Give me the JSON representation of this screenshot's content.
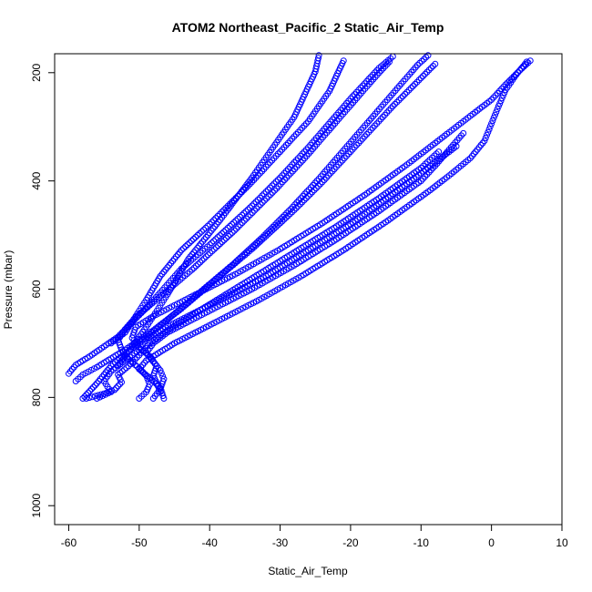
{
  "chart_data": {
    "type": "scatter",
    "title": "ATOM2 Northeast_Pacific_2 Static_Air_Temp",
    "xlabel": "Static_Air_Temp",
    "ylabel": "Pressure (mbar)",
    "xlim": [
      -62,
      10
    ],
    "ylim": [
      1035,
      165
    ],
    "y_inverted": true,
    "x_ticks": [
      -60,
      -50,
      -40,
      -30,
      -20,
      -10,
      0,
      10
    ],
    "y_ticks": [
      200,
      400,
      600,
      800,
      1000
    ],
    "grid": false,
    "legend": "none",
    "marker": "open-circle",
    "color": "#0000ff",
    "profiles": [
      [
        [
          -57.5,
          802
        ],
        [
          -55,
          793
        ],
        [
          -53.5,
          786
        ],
        [
          -52.5,
          772
        ],
        [
          -53,
          758
        ],
        [
          -51.5,
          742
        ],
        [
          -50,
          722
        ],
        [
          -48.5,
          700
        ],
        [
          -46,
          676
        ],
        [
          -43,
          652
        ],
        [
          -40,
          628
        ],
        [
          -37,
          604
        ],
        [
          -34,
          580
        ],
        [
          -31,
          556
        ],
        [
          -28,
          532
        ],
        [
          -25,
          508
        ],
        [
          -22,
          484
        ],
        [
          -19,
          458
        ],
        [
          -16,
          432
        ],
        [
          -13,
          404
        ],
        [
          -10,
          376
        ],
        [
          -7.5,
          346
        ]
      ],
      [
        [
          -56,
          802
        ],
        [
          -54,
          790
        ],
        [
          -55,
          770
        ],
        [
          -54,
          752
        ],
        [
          -52,
          732
        ],
        [
          -50,
          712
        ],
        [
          -49,
          692
        ],
        [
          -47,
          676
        ],
        [
          -44,
          656
        ],
        [
          -41,
          636
        ],
        [
          -38,
          616
        ],
        [
          -35,
          596
        ],
        [
          -32,
          576
        ],
        [
          -29,
          552
        ],
        [
          -26,
          528
        ],
        [
          -23,
          504
        ],
        [
          -20,
          480
        ],
        [
          -17,
          452
        ],
        [
          -14,
          424
        ],
        [
          -11,
          396
        ],
        [
          -8,
          366
        ],
        [
          -5,
          336
        ]
      ],
      [
        [
          -59,
          770
        ],
        [
          -58,
          758
        ],
        [
          -56,
          744
        ],
        [
          -54,
          728
        ],
        [
          -52,
          712
        ],
        [
          -50,
          694
        ],
        [
          -48,
          676
        ],
        [
          -46,
          656
        ],
        [
          -44,
          636
        ],
        [
          -42,
          614
        ],
        [
          -40,
          592
        ],
        [
          -38,
          570
        ],
        [
          -36,
          548
        ],
        [
          -34,
          526
        ],
        [
          -32,
          502
        ],
        [
          -30,
          478
        ],
        [
          -28,
          454
        ],
        [
          -26,
          428
        ],
        [
          -24,
          402
        ],
        [
          -22,
          374
        ],
        [
          -20,
          346
        ],
        [
          -18,
          318
        ],
        [
          -16,
          290
        ],
        [
          -14,
          262
        ],
        [
          -12,
          236
        ],
        [
          -10,
          210
        ],
        [
          -8,
          184
        ]
      ],
      [
        [
          -60,
          756
        ],
        [
          -59,
          740
        ],
        [
          -57,
          724
        ],
        [
          -55,
          706
        ],
        [
          -53,
          688
        ],
        [
          -51.5,
          668
        ],
        [
          -50,
          648
        ],
        [
          -48.5,
          628
        ],
        [
          -47,
          606
        ],
        [
          -45.5,
          584
        ],
        [
          -44,
          562
        ],
        [
          -42,
          540
        ],
        [
          -40,
          518
        ],
        [
          -38,
          494
        ],
        [
          -36,
          470
        ],
        [
          -34,
          446
        ],
        [
          -32,
          420
        ],
        [
          -30,
          394
        ],
        [
          -28,
          366
        ],
        [
          -26,
          338
        ],
        [
          -24,
          308
        ],
        [
          -22,
          278
        ],
        [
          -20,
          248
        ],
        [
          -18,
          220
        ],
        [
          -16,
          192
        ],
        [
          -14,
          170
        ]
      ],
      [
        [
          -50,
          802
        ],
        [
          -49,
          790
        ],
        [
          -48.5,
          776
        ],
        [
          -49,
          760
        ],
        [
          -50,
          746
        ],
        [
          -51.5,
          730
        ],
        [
          -52.5,
          712
        ],
        [
          -53,
          694
        ],
        [
          -52,
          674
        ],
        [
          -50.5,
          652
        ],
        [
          -48.5,
          630
        ],
        [
          -46.5,
          608
        ],
        [
          -44.5,
          586
        ],
        [
          -42.5,
          564
        ],
        [
          -40.5,
          540
        ],
        [
          -38.5,
          516
        ],
        [
          -36.5,
          492
        ],
        [
          -34.5,
          466
        ],
        [
          -32.5,
          440
        ],
        [
          -30.5,
          414
        ],
        [
          -28.5,
          386
        ],
        [
          -26.5,
          358
        ],
        [
          -24.5,
          328
        ],
        [
          -22.5,
          298
        ],
        [
          -20.5,
          268
        ],
        [
          -18.5,
          238
        ],
        [
          -16.5,
          208
        ],
        [
          -14.5,
          180
        ]
      ],
      [
        [
          -47,
          790
        ],
        [
          -47.5,
          774
        ],
        [
          -48,
          760
        ],
        [
          -47.5,
          742
        ],
        [
          -48.5,
          724
        ],
        [
          -50,
          708
        ],
        [
          -51,
          690
        ],
        [
          -50.5,
          670
        ],
        [
          -48,
          650
        ],
        [
          -45,
          630
        ],
        [
          -42,
          610
        ],
        [
          -39,
          590
        ],
        [
          -36,
          570
        ],
        [
          -33,
          548
        ],
        [
          -30,
          526
        ],
        [
          -27,
          502
        ],
        [
          -24,
          478
        ],
        [
          -21,
          452
        ],
        [
          -18,
          426
        ],
        [
          -15,
          398
        ],
        [
          -12,
          370
        ],
        [
          -9,
          340
        ],
        [
          -6,
          310
        ],
        [
          -3,
          280
        ],
        [
          0,
          250
        ],
        [
          2,
          222
        ],
        [
          4,
          196
        ],
        [
          5.5,
          178
        ]
      ],
      [
        [
          -46.5,
          802
        ],
        [
          -47,
          782
        ],
        [
          -48.5,
          764
        ],
        [
          -50,
          748
        ],
        [
          -49,
          732
        ],
        [
          -47,
          716
        ],
        [
          -45,
          700
        ],
        [
          -42,
          680
        ],
        [
          -39,
          660
        ],
        [
          -36,
          640
        ],
        [
          -33,
          620
        ],
        [
          -30,
          598
        ],
        [
          -27,
          576
        ],
        [
          -24,
          552
        ],
        [
          -21,
          528
        ],
        [
          -18,
          502
        ],
        [
          -15,
          476
        ],
        [
          -12,
          448
        ],
        [
          -9,
          420
        ],
        [
          -6,
          390
        ],
        [
          -3,
          358
        ],
        [
          -1,
          326
        ],
        [
          0,
          294
        ],
        [
          1,
          262
        ],
        [
          2,
          232
        ],
        [
          3.5,
          204
        ],
        [
          5,
          180
        ]
      ],
      [
        [
          -58,
          802
        ],
        [
          -57,
          788
        ],
        [
          -56,
          774
        ],
        [
          -55,
          758
        ],
        [
          -54,
          742
        ],
        [
          -52.5,
          724
        ],
        [
          -50.5,
          704
        ],
        [
          -48.5,
          684
        ],
        [
          -46.5,
          662
        ],
        [
          -44.5,
          640
        ],
        [
          -42.5,
          618
        ],
        [
          -40.5,
          596
        ],
        [
          -38.5,
          574
        ],
        [
          -36.5,
          552
        ],
        [
          -34.5,
          528
        ],
        [
          -32.5,
          504
        ],
        [
          -30.5,
          478
        ],
        [
          -28.5,
          452
        ],
        [
          -26.5,
          424
        ],
        [
          -24.5,
          396
        ],
        [
          -22.5,
          366
        ],
        [
          -20.5,
          336
        ],
        [
          -18.5,
          306
        ],
        [
          -16.5,
          276
        ],
        [
          -14.5,
          246
        ],
        [
          -12.5,
          216
        ],
        [
          -10.5,
          186
        ],
        [
          -9,
          168
        ]
      ],
      [
        [
          -53,
          740
        ],
        [
          -52,
          724
        ],
        [
          -51,
          706
        ],
        [
          -50,
          688
        ],
        [
          -49,
          670
        ],
        [
          -48,
          650
        ],
        [
          -47,
          630
        ],
        [
          -46,
          610
        ],
        [
          -45,
          588
        ],
        [
          -44,
          566
        ],
        [
          -43,
          544
        ],
        [
          -41.5,
          520
        ],
        [
          -40,
          496
        ],
        [
          -38.5,
          472
        ],
        [
          -37,
          446
        ],
        [
          -35.5,
          420
        ],
        [
          -34,
          394
        ],
        [
          -32.5,
          366
        ],
        [
          -31,
          338
        ],
        [
          -29.5,
          310
        ],
        [
          -28,
          282
        ],
        [
          -27,
          254
        ],
        [
          -26,
          226
        ],
        [
          -25,
          198
        ],
        [
          -24.5,
          168
        ]
      ],
      [
        [
          -54,
          700
        ],
        [
          -52,
          680
        ],
        [
          -51,
          660
        ],
        [
          -50,
          640
        ],
        [
          -49,
          620
        ],
        [
          -48,
          598
        ],
        [
          -47,
          576
        ],
        [
          -45.5,
          552
        ],
        [
          -44,
          528
        ],
        [
          -42,
          504
        ],
        [
          -40,
          480
        ],
        [
          -38,
          454
        ],
        [
          -36,
          428
        ],
        [
          -34,
          402
        ],
        [
          -32,
          374
        ],
        [
          -30,
          346
        ],
        [
          -28,
          318
        ],
        [
          -26,
          290
        ],
        [
          -24.5,
          262
        ],
        [
          -23,
          234
        ],
        [
          -22,
          206
        ],
        [
          -21,
          178
        ]
      ],
      [
        [
          -48,
          802
        ],
        [
          -47,
          784
        ],
        [
          -46.5,
          766
        ],
        [
          -47,
          750
        ],
        [
          -48,
          734
        ],
        [
          -49,
          718
        ],
        [
          -48,
          700
        ],
        [
          -46,
          680
        ],
        [
          -43,
          660
        ],
        [
          -40,
          640
        ],
        [
          -37,
          620
        ],
        [
          -34,
          600
        ],
        [
          -31,
          578
        ],
        [
          -28,
          556
        ],
        [
          -25,
          532
        ],
        [
          -22,
          508
        ],
        [
          -19,
          482
        ],
        [
          -16,
          456
        ],
        [
          -13,
          428
        ],
        [
          -10,
          400
        ],
        [
          -8,
          372
        ],
        [
          -6,
          342
        ],
        [
          -4,
          312
        ]
      ]
    ]
  }
}
